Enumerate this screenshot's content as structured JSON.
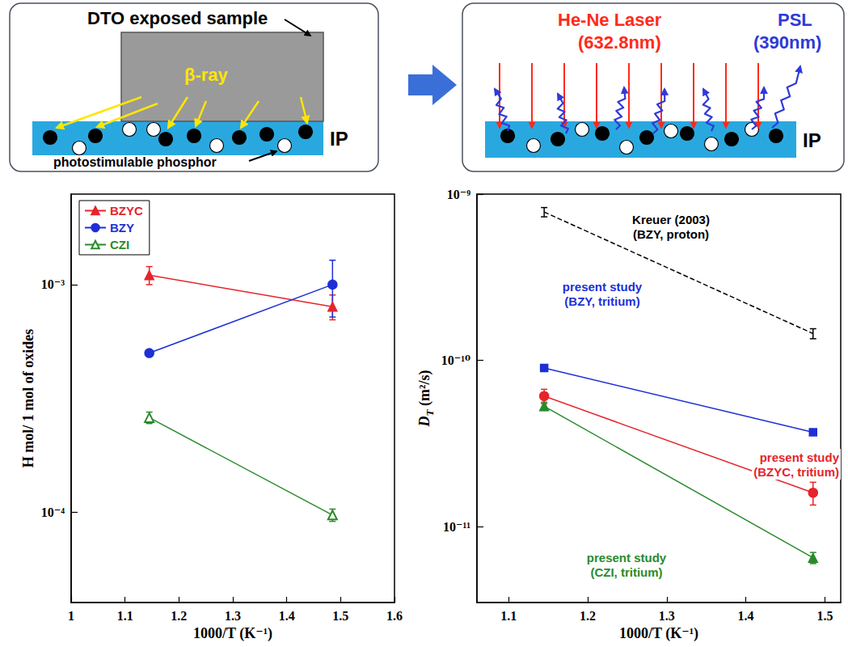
{
  "diagram": {
    "left_panel": {
      "sample_label": "DTO exposed sample",
      "ray_label": "β-ray",
      "phosphor_label": "photostimulable phosphor",
      "plate_label": "IP"
    },
    "right_panel": {
      "laser_label": [
        "He-Ne Laser",
        "(632.8nm)"
      ],
      "emission_label": [
        "PSL",
        "(390nm)"
      ],
      "plate_label": "IP"
    }
  },
  "chart_data": [
    {
      "type": "line",
      "xlabel": "1000/T (K⁻¹)",
      "ylabel": "H mol/ 1 mol of oxides",
      "log": "y",
      "grid": false,
      "legend": "upper left",
      "xlim": [
        1,
        1.6
      ],
      "xticks": [
        1,
        1.1,
        1.2,
        1.3,
        1.4,
        1.5,
        1.6
      ],
      "ylim": [
        4e-05,
        0.0025
      ],
      "yticks": [
        {
          "value": 0.0001,
          "label": "10⁻⁴"
        },
        {
          "value": 0.001,
          "label": "10⁻³"
        }
      ],
      "series": [
        {
          "name": "BZYC",
          "color": "#e6242b",
          "marker": "triangle",
          "line_style": "solid",
          "x": [
            1.145,
            1.485
          ],
          "values": [
            0.0011,
            0.0008
          ],
          "errors": [
            0.0001,
            0.0001
          ]
        },
        {
          "name": "BZY",
          "color": "#1e2fd6",
          "marker": "circle",
          "line_style": "solid",
          "x": [
            1.145,
            1.485
          ],
          "values": [
            0.0005,
            0.001
          ],
          "errors": [
            1e-05,
            0.00028
          ]
        },
        {
          "name": "CZI",
          "color": "#2a8a2a",
          "marker": "triangle-open",
          "line_style": "solid",
          "x": [
            1.145,
            1.485
          ],
          "values": [
            0.00026,
            9.7e-05
          ],
          "errors": [
            1.5e-05,
            6e-06
          ]
        }
      ]
    },
    {
      "type": "line",
      "xlabel": "1000/T (K⁻¹)",
      "ylabel": "D",
      "ylabel_subscript": "T",
      "ylabel_unit": "(m²/s)",
      "log": "y",
      "grid": false,
      "xlim": [
        1.06,
        1.52
      ],
      "xticks": [
        1.1,
        1.2,
        1.3,
        1.4,
        1.5
      ],
      "ylim": [
        3.5e-12,
        1e-09
      ],
      "yticks": [
        {
          "value": 1e-11,
          "label": "10⁻¹¹"
        },
        {
          "value": 1e-10,
          "label": "10⁻¹⁰"
        },
        {
          "value": 1e-09,
          "label": "10⁻⁹"
        }
      ],
      "series": [
        {
          "color": "#000000",
          "marker": "none",
          "line_style": "dashed",
          "x": [
            1.145,
            1.485
          ],
          "values": [
            7.8e-10,
            1.45e-10
          ],
          "errors": [
            5e-11,
            1e-11
          ],
          "annotation": [
            "Kreuer (2003)",
            "(BZY, proton)"
          ]
        },
        {
          "color": "#1e2fd6",
          "marker": "square",
          "line_style": "solid",
          "x": [
            1.145,
            1.485
          ],
          "values": [
            9e-11,
            3.7e-11
          ],
          "errors": [
            2e-12,
            1e-12
          ],
          "annotation": [
            "present study",
            "(BZY, tritium)"
          ]
        },
        {
          "color": "#e6242b",
          "marker": "circle",
          "line_style": "solid",
          "x": [
            1.145,
            1.485
          ],
          "values": [
            6.1e-11,
            1.6e-11
          ],
          "errors": [
            6e-12,
            2.5e-12
          ],
          "annotation": [
            "present study",
            "(BZYC, tritium)"
          ]
        },
        {
          "color": "#2a8a2a",
          "marker": "triangle",
          "line_style": "solid",
          "x": [
            1.145,
            1.485
          ],
          "values": [
            5.3e-11,
            6.5e-12
          ],
          "errors": [
            3e-12,
            5e-13
          ],
          "annotation": [
            "present study",
            "(CZI, tritium)"
          ]
        }
      ]
    }
  ]
}
